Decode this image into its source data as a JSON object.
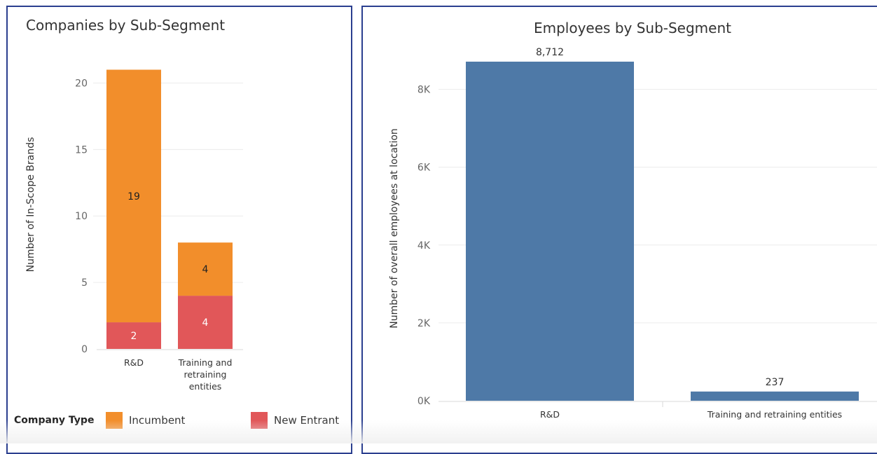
{
  "chart_data": [
    {
      "type": "bar",
      "stacked": true,
      "title": "Companies by Sub-Segment",
      "ylabel": "Number of In-Scope Brands",
      "xlabel": "",
      "categories": [
        "R&D",
        "Training and\nretraining\nentities"
      ],
      "series": [
        {
          "name": "New Entrant",
          "values": [
            2,
            4
          ],
          "color": "#e15759"
        },
        {
          "name": "Incumbent",
          "values": [
            19,
            4
          ],
          "color": "#f28e2b"
        }
      ],
      "yticks": [
        0,
        5,
        10,
        15,
        20
      ],
      "ylim": [
        0,
        21.5
      ],
      "grid": true,
      "legend": {
        "title": "Company Type",
        "position": "bottom",
        "order": [
          "Incumbent",
          "New Entrant"
        ]
      }
    },
    {
      "type": "bar",
      "title": "Employees by Sub-Segment",
      "ylabel": "Number of overall employees at location",
      "xlabel": "",
      "categories": [
        "R&D",
        "Training and retraining entities"
      ],
      "values": [
        8712,
        237
      ],
      "data_labels": [
        "8,712",
        "237"
      ],
      "color": "#4e79a7",
      "yticks": [
        0,
        2000,
        4000,
        6000,
        8000
      ],
      "ytick_labels": [
        "0K",
        "2K",
        "4K",
        "6K",
        "8K"
      ],
      "ylim": [
        0,
        9000
      ],
      "grid": true
    }
  ],
  "legend_left": {
    "title": "Company Type",
    "items": [
      {
        "label": "Incumbent",
        "color": "#f28e2b"
      },
      {
        "label": "New Entrant",
        "color": "#e15759"
      }
    ]
  }
}
